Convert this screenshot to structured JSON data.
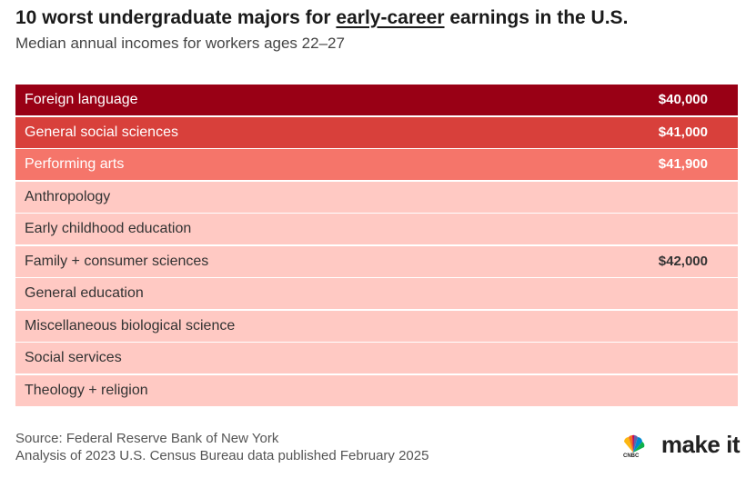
{
  "header": {
    "title": [
      "10 worst undergraduate majors for ",
      "early-career",
      " earnings in the U.S."
    ],
    "subtitle": "Median annual incomes for workers ages 22–27"
  },
  "table": {
    "rows": [
      {
        "label": "Foreign language",
        "value": "$40,000",
        "color": "#990015",
        "text_color": "#ffffff"
      },
      {
        "label": "General social sciences",
        "value": "$41,000",
        "color": "#d8403b",
        "text_color": "#ffffff"
      },
      {
        "label": "Performing arts",
        "value": "$41,900",
        "color": "#f5756a",
        "text_color": "#ffffff"
      },
      {
        "label": "Anthropology",
        "color": "#ffc9c3",
        "text_color": "#333333"
      },
      {
        "label": "Early childhood education",
        "color": "#ffc9c3",
        "text_color": "#333333"
      },
      {
        "label": "Family + consumer sciences",
        "value": "$42,000",
        "color": "#ffc9c3",
        "text_color": "#333333"
      },
      {
        "label": "General education",
        "color": "#ffc9c3",
        "text_color": "#333333"
      },
      {
        "label": "Miscellaneous biological science",
        "color": "#ffc9c3",
        "text_color": "#333333"
      },
      {
        "label": "Social services",
        "color": "#ffc9c3",
        "text_color": "#333333"
      },
      {
        "label": "Theology + religion",
        "color": "#ffc9c3",
        "text_color": "#333333"
      }
    ]
  },
  "footer": {
    "source": [
      "Source: Federal Reserve Bank of New York",
      "Analysis of 2023 U.S. Census Bureau data published February 2025"
    ],
    "logo": {
      "network": "CNBC",
      "text": "make it"
    }
  }
}
